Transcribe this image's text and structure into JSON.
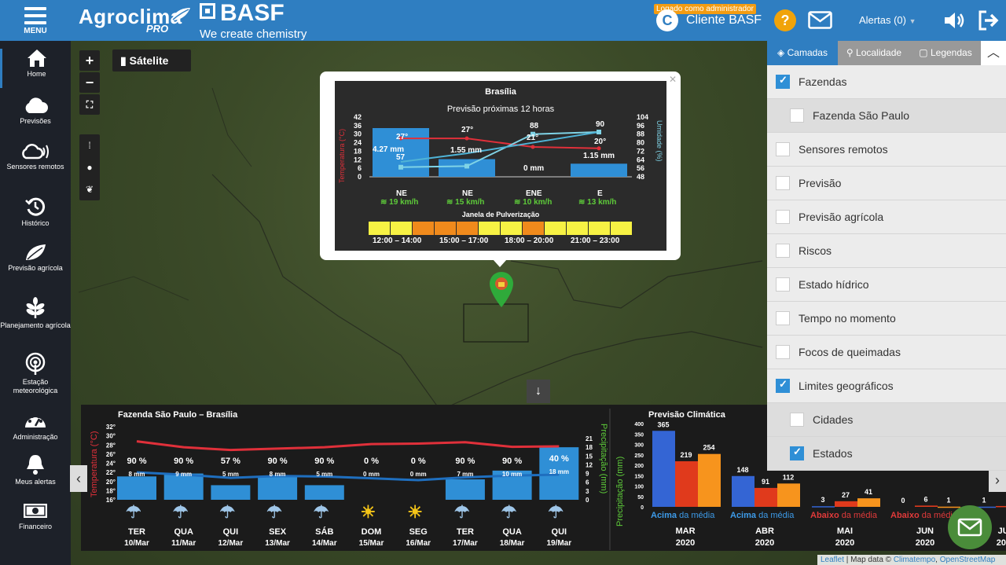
{
  "header": {
    "menu_label": "MENU",
    "logo_main": "Agroclima",
    "logo_pro": "PRO",
    "brand": "BASF",
    "brand_tag": "We create chemistry",
    "admin_badge": "Logado como administrador",
    "client_initial": "C",
    "client_name": "Cliente BASF",
    "help": "?",
    "alerts": "Alertas (0)"
  },
  "sidebar": [
    {
      "label": "Home",
      "icon": "home-icon"
    },
    {
      "label": "Previsões",
      "icon": "cloud-icon"
    },
    {
      "label": "Sensores remotos",
      "icon": "sensor-cloud-icon"
    },
    {
      "label": "Histórico",
      "icon": "history-icon"
    },
    {
      "label": "Previsão agrícola",
      "icon": "leaf-icon"
    },
    {
      "label": "Planejamento agrícola",
      "icon": "plant-icon"
    },
    {
      "label": "Estação meteorológica",
      "icon": "station-icon"
    },
    {
      "label": "Administração",
      "icon": "dashboard-icon"
    },
    {
      "label": "Meus alertas",
      "icon": "bell-icon"
    },
    {
      "label": "Financeiro",
      "icon": "money-icon"
    }
  ],
  "map": {
    "zoom_in": "+",
    "zoom_out": "−",
    "fullscreen": "⛶",
    "satellite": "Sátelite",
    "scroll": "↓"
  },
  "popup": {
    "title": "Brasília",
    "subtitle": "Previsão próximas 12 horas",
    "left_axis_label": "Temperatura (°C)",
    "right_axis_label": "Umidade (%)",
    "left_ticks": [
      "42",
      "36",
      "30",
      "24",
      "18",
      "12",
      "6",
      "0"
    ],
    "right_ticks": [
      "104",
      "96",
      "88",
      "80",
      "72",
      "64",
      "56",
      "48"
    ],
    "precip": [
      "4.27 mm",
      "1.55 mm",
      "0 mm",
      "1.15 mm"
    ],
    "temps": [
      "27°",
      "27°",
      "21°",
      "20°"
    ],
    "humidity": [
      "57",
      "",
      "88",
      "90"
    ],
    "winds": [
      {
        "dir": "NE",
        "speed": "19 km/h"
      },
      {
        "dir": "NE",
        "speed": "15 km/h"
      },
      {
        "dir": "ENE",
        "speed": "10 km/h"
      },
      {
        "dir": "E",
        "speed": "13 km/h"
      }
    ],
    "spray_title": "Janela de Pulverização",
    "spray_windows": [
      "12:00 – 14:00",
      "15:00 – 17:00",
      "18:00 – 20:00",
      "21:00 – 23:00"
    ],
    "colors": {
      "bar": "#2f8fd6",
      "temp": "#e0303a",
      "hum": "#7fd3e6",
      "spray_ok": "#f7f244",
      "spray_bad": "#f08a1c"
    }
  },
  "forecast": {
    "title": "Fazenda São Paulo – Brasília",
    "left_axis_label": "Temperatura (°C)",
    "right_axis_label": "Precipitação (mm)",
    "left_ticks": [
      "32°",
      "30°",
      "28°",
      "26°",
      "24°",
      "22°",
      "20°",
      "18°",
      "16°"
    ],
    "right_ticks": [
      "21",
      "18",
      "15",
      "12",
      "9",
      "6",
      "3",
      "0"
    ],
    "days": [
      {
        "day": "TER",
        "date": "10/Mar",
        "pct": "90 %",
        "mm": "8 mm",
        "weather": "rain-sun-icon",
        "precip": 8
      },
      {
        "day": "QUA",
        "date": "11/Mar",
        "pct": "90 %",
        "mm": "9 mm",
        "weather": "rain-sun-icon",
        "precip": 9
      },
      {
        "day": "QUI",
        "date": "12/Mar",
        "pct": "57 %",
        "mm": "5 mm",
        "weather": "rain-sun-icon",
        "precip": 5
      },
      {
        "day": "SEX",
        "date": "13/Mar",
        "pct": "90 %",
        "mm": "8 mm",
        "weather": "rain-sun-icon",
        "precip": 8
      },
      {
        "day": "SÁB",
        "date": "14/Mar",
        "pct": "90 %",
        "mm": "5 mm",
        "weather": "rain-sun-icon",
        "precip": 5
      },
      {
        "day": "DOM",
        "date": "15/Mar",
        "pct": "0 %",
        "mm": "0 mm",
        "weather": "sun-icon",
        "precip": 0
      },
      {
        "day": "SEG",
        "date": "16/Mar",
        "pct": "0 %",
        "mm": "0 mm",
        "weather": "sun-icon",
        "precip": 0
      },
      {
        "day": "TER",
        "date": "17/Mar",
        "pct": "90 %",
        "mm": "7 mm",
        "weather": "rain-sun-icon",
        "precip": 7
      },
      {
        "day": "QUA",
        "date": "18/Mar",
        "pct": "90 %",
        "mm": "10 mm",
        "weather": "rain-sun-icon",
        "precip": 10
      },
      {
        "day": "QUI",
        "date": "19/Mar",
        "pct": "40 %",
        "mm": "18 mm",
        "weather": "rain-sun-icon",
        "precip": 18
      }
    ]
  },
  "climate": {
    "title": "Previsão Climática",
    "axis_label": "Precipitação (mm)",
    "ticks": [
      "400",
      "350",
      "300",
      "250",
      "200",
      "150",
      "100",
      "50",
      "0"
    ],
    "months": [
      {
        "month": "MAR",
        "year": "2020",
        "values": [
          365,
          219,
          254
        ],
        "status_a": "Acima",
        "status_b": " da média"
      },
      {
        "month": "ABR",
        "year": "2020",
        "values": [
          148,
          91,
          112
        ],
        "status_a": "Acima",
        "status_b": " da média"
      },
      {
        "month": "MAI",
        "year": "2020",
        "values": [
          3,
          27,
          41
        ],
        "status_a": "Abaixo",
        "status_b": " da média"
      },
      {
        "month": "JUN",
        "year": "2020",
        "values": [
          0,
          6,
          1
        ],
        "status_a": "Abaixo",
        "status_b": " da média"
      },
      {
        "month": "JUL",
        "year": "2020",
        "values": [
          1,
          4,
          0
        ],
        "status_a": "Abaixo",
        "status_b": " da média"
      }
    ],
    "shown_labels": {
      "abr3": "112"
    },
    "colors": {
      "s1": "#3465d4",
      "s2": "#e03a1c",
      "s3": "#f7941d",
      "above": "#3d9be9",
      "below": "#e03a3a"
    }
  },
  "layers": {
    "tabs": [
      "Camadas",
      "Localidade",
      "Legendas"
    ],
    "items": [
      {
        "label": "Fazendas",
        "checked": true,
        "sub": false
      },
      {
        "label": "Fazenda São Paulo",
        "checked": false,
        "sub": true
      },
      {
        "label": "Sensores remotos",
        "checked": false,
        "sub": false
      },
      {
        "label": "Previsão",
        "checked": false,
        "sub": false
      },
      {
        "label": "Previsão agrícola",
        "checked": false,
        "sub": false
      },
      {
        "label": "Riscos",
        "checked": false,
        "sub": false
      },
      {
        "label": "Estado hídrico",
        "checked": false,
        "sub": false
      },
      {
        "label": "Tempo no momento",
        "checked": false,
        "sub": false
      },
      {
        "label": "Focos de queimadas",
        "checked": false,
        "sub": false
      },
      {
        "label": "Limites geográficos",
        "checked": true,
        "sub": false
      },
      {
        "label": "Cidades",
        "checked": false,
        "sub": true
      },
      {
        "label": "Estados",
        "checked": true,
        "sub": true
      }
    ]
  },
  "attribution": {
    "leaflet": "Leaflet",
    "text": " | Map data © ",
    "ct": "Climatempo",
    "comma": ", ",
    "osm": "OpenStreetMap"
  }
}
